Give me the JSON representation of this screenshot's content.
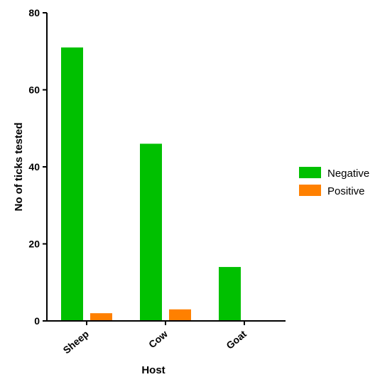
{
  "chart_data": {
    "type": "bar",
    "title": "",
    "xlabel": "Host",
    "ylabel": "No of ticks tested",
    "categories": [
      "Sheep",
      "Cow",
      "Goat"
    ],
    "series": [
      {
        "name": "Negative",
        "color": "#00C000",
        "values": [
          71,
          46,
          14
        ]
      },
      {
        "name": "Positive",
        "color": "#FF8000",
        "values": [
          2,
          3,
          0
        ]
      }
    ],
    "ylim": [
      0,
      80
    ],
    "yticks": [
      0,
      20,
      40,
      60,
      80
    ],
    "grid": false,
    "legend_position": "right"
  }
}
